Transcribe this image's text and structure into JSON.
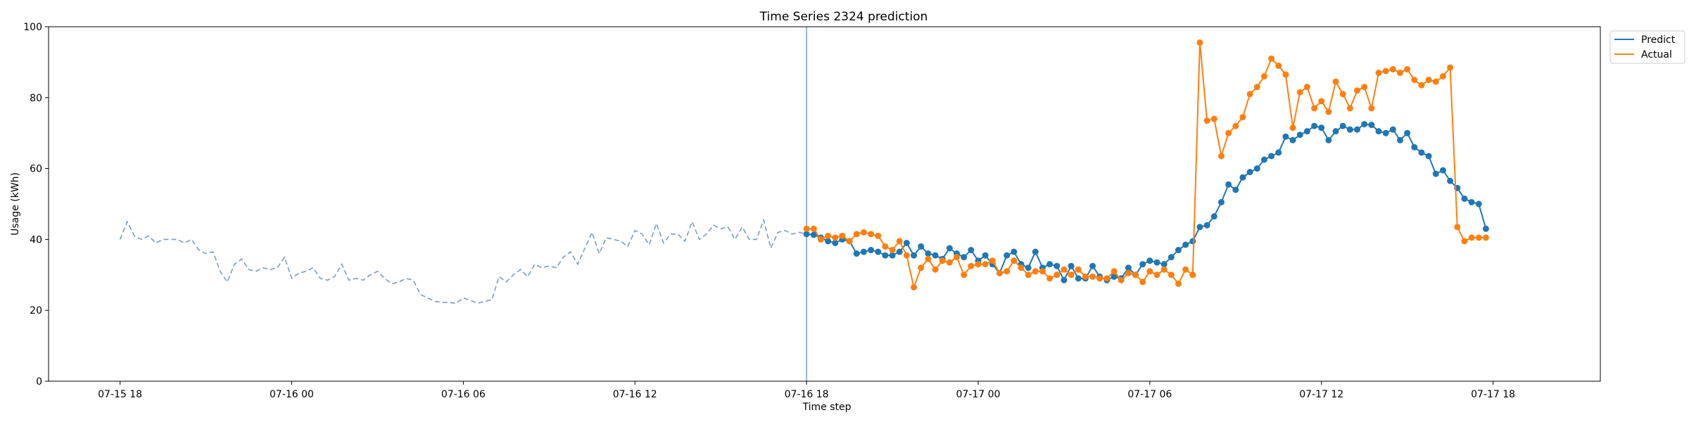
{
  "chart_data": {
    "type": "line",
    "title": "Time Series 2324 prediction",
    "xlabel": "Time step",
    "ylabel": "Usage (kWh)",
    "ylim": [
      0,
      100
    ],
    "yticks": [
      0,
      20,
      40,
      60,
      80,
      100
    ],
    "xlim": [
      -10,
      207
    ],
    "x_unit": "15-minute time step, 0 = 07-15 18:00",
    "xticks": [
      {
        "x": 0,
        "label": "07-15 18"
      },
      {
        "x": 24,
        "label": "07-16 00"
      },
      {
        "x": 48,
        "label": "07-16 06"
      },
      {
        "x": 72,
        "label": "07-16 12"
      },
      {
        "x": 96,
        "label": "07-16 18"
      },
      {
        "x": 120,
        "label": "07-17 00"
      },
      {
        "x": 144,
        "label": "07-17 06"
      },
      {
        "x": 168,
        "label": "07-17 12"
      },
      {
        "x": 192,
        "label": "07-17 18"
      }
    ],
    "divider_x": 96,
    "legend": {
      "position": "top-right",
      "entries": [
        "Predict",
        "Actual"
      ]
    },
    "colors": {
      "predict": "#1f77b4",
      "actual": "#ff7f0e",
      "history": "#7b9cc4",
      "divider": "#7b9cc4"
    },
    "history": {
      "x_start": 0,
      "values": [
        40,
        45,
        41,
        40,
        41,
        39,
        40,
        40,
        40,
        39,
        40,
        37,
        36,
        36.5,
        31,
        28,
        33,
        34.5,
        31.5,
        31,
        32,
        31.5,
        32,
        35,
        29,
        30.5,
        31,
        32,
        29,
        28.5,
        29.5,
        33,
        28.5,
        29,
        28.5,
        30,
        31,
        29,
        27.5,
        28,
        29,
        28.5,
        24.5,
        23.5,
        22.5,
        22.3,
        22.2,
        22,
        23.5,
        22.8,
        22,
        22.5,
        23,
        29.5,
        28,
        30,
        31.5,
        29.5,
        33,
        32,
        32.5,
        32,
        35,
        36.5,
        33,
        37.5,
        42,
        36,
        40.5,
        40,
        39.5,
        38,
        42.5,
        41.5,
        38.5,
        44.5,
        39,
        41.5,
        41.5,
        39.5,
        45,
        40,
        41.5,
        44,
        43,
        43.5,
        40,
        43.5,
        40,
        40,
        45.5,
        37.5,
        42,
        42.5,
        41.5,
        42,
        41.5
      ]
    },
    "series": [
      {
        "name": "Predict",
        "x_start": 96,
        "values": [
          41.5,
          41.3,
          40.5,
          39.5,
          39,
          40,
          39.5,
          36,
          36.5,
          37,
          36.5,
          35.5,
          35.5,
          36.5,
          39,
          35.5,
          38,
          36,
          35.5,
          34.5,
          37.5,
          36,
          35,
          37,
          34,
          35.5,
          33,
          30.5,
          35.5,
          36.5,
          33,
          32,
          36.5,
          32,
          33,
          32.5,
          28.5,
          32.5,
          29,
          29,
          32.5,
          29.5,
          28.5,
          29.5,
          29,
          32,
          30,
          33,
          34,
          33.5,
          33,
          35,
          37,
          38.5,
          39.5,
          43.5,
          44,
          46.5,
          50.5,
          55.5,
          54,
          57.5,
          59,
          60,
          62.5,
          63.5,
          64.5,
          69,
          68,
          69.5,
          70.5,
          72,
          71.5,
          68,
          70.5,
          72,
          71,
          71,
          72.5,
          72.3,
          70.5,
          70,
          71,
          68,
          70,
          66,
          64.5,
          63.5,
          58.5,
          59.5,
          56.5,
          54.5,
          51.5,
          50.5,
          50,
          43
        ]
      },
      {
        "name": "Actual",
        "x_start": 96,
        "values": [
          43,
          43,
          40,
          41,
          40.5,
          41,
          39.5,
          41.5,
          42,
          41.5,
          41,
          38,
          37,
          39.5,
          35.5,
          26.5,
          32,
          34.5,
          31.5,
          34,
          33.5,
          35,
          30,
          32.5,
          33,
          33,
          34,
          30.5,
          31,
          34,
          32,
          30,
          31,
          31,
          29,
          30,
          31.5,
          30,
          31.5,
          29.5,
          29.5,
          29,
          29,
          31,
          28.5,
          30.5,
          30,
          28,
          31,
          30,
          31.5,
          30,
          27.5,
          31.5,
          30,
          95.5,
          73.5,
          74,
          63.5,
          70,
          72,
          74.5,
          81,
          83,
          86,
          91,
          89,
          86.5,
          71.5,
          81.5,
          83,
          77,
          79,
          76,
          84.5,
          81,
          77,
          82,
          83,
          77,
          87,
          87.5,
          88,
          87,
          88,
          85,
          83.5,
          85,
          84.5,
          86,
          88.5,
          43.5,
          39.5,
          40.5,
          40.5,
          40.5
        ]
      }
    ]
  }
}
